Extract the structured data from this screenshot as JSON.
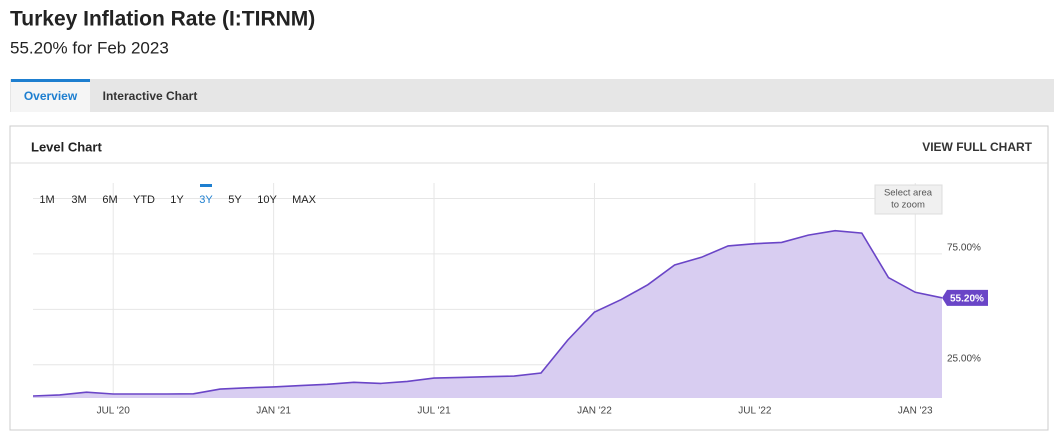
{
  "header": {
    "title": "Turkey Inflation Rate (I:TIRNM)",
    "subtitle": "55.20% for Feb 2023"
  },
  "tabs": {
    "items": [
      "Overview",
      "Interactive Chart"
    ],
    "selected": 0
  },
  "card": {
    "title": "Level Chart",
    "action": "VIEW FULL CHART"
  },
  "ranges": {
    "items": [
      "1M",
      "3M",
      "6M",
      "YTD",
      "1Y",
      "3Y",
      "5Y",
      "10Y",
      "MAX"
    ],
    "selected": 5
  },
  "zoom_hint": [
    "Select area",
    "to zoom"
  ],
  "chart_data": {
    "type": "area",
    "x": [
      "2020-04",
      "2020-05",
      "2020-06",
      "2020-07",
      "2020-08",
      "2020-09",
      "2020-10",
      "2020-11",
      "2020-12",
      "2021-01",
      "2021-02",
      "2021-03",
      "2021-04",
      "2021-05",
      "2021-06",
      "2021-07",
      "2021-08",
      "2021-09",
      "2021-10",
      "2021-11",
      "2021-12",
      "2022-01",
      "2022-02",
      "2022-03",
      "2022-04",
      "2022-05",
      "2022-06",
      "2022-07",
      "2022-08",
      "2022-09",
      "2022-10",
      "2022-11",
      "2022-12",
      "2023-01",
      "2023-02"
    ],
    "values": [
      10.9,
      11.4,
      12.6,
      11.8,
      11.8,
      11.8,
      11.9,
      14.0,
      14.6,
      15.0,
      15.6,
      16.2,
      17.1,
      16.6,
      17.5,
      19.0,
      19.3,
      19.6,
      19.9,
      21.3,
      36.1,
      48.7,
      54.4,
      61.1,
      70.0,
      73.5,
      78.6,
      79.6,
      80.2,
      83.5,
      85.5,
      84.4,
      64.3,
      57.7,
      55.2
    ],
    "last_value_label": "55.20%",
    "color": "#6a45c7",
    "fill": "#d8cdf1",
    "xlim": [
      "2020-04",
      "2023-02"
    ],
    "xticks": [
      {
        "value": "2020-07",
        "label": "JUL '20"
      },
      {
        "value": "2021-01",
        "label": "JAN '21"
      },
      {
        "value": "2021-07",
        "label": "JUL '21"
      },
      {
        "value": "2022-01",
        "label": "JAN '22"
      },
      {
        "value": "2022-07",
        "label": "JUL '22"
      },
      {
        "value": "2023-01",
        "label": "JAN '23"
      }
    ],
    "ylim": [
      10,
      107
    ],
    "yticks": [
      {
        "value": 25,
        "label": "25.00%"
      },
      {
        "value": 50,
        "label": null
      },
      {
        "value": 75,
        "label": "75.00%"
      },
      {
        "value": 100,
        "label": null
      }
    ],
    "grid": true
  }
}
